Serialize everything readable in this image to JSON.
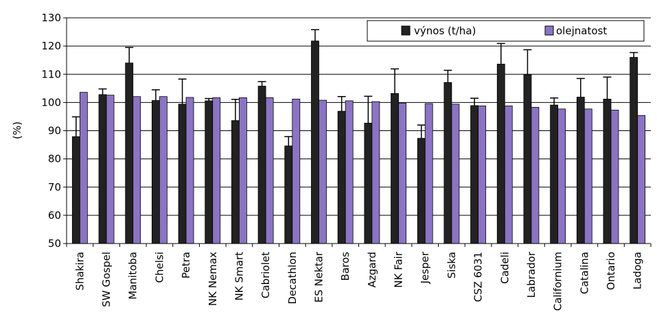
{
  "chart_data": {
    "type": "bar",
    "title": "",
    "xlabel": "",
    "ylabel": "(%)",
    "ylim": [
      50,
      130
    ],
    "yticks": [
      50,
      60,
      70,
      80,
      90,
      100,
      110,
      120,
      130
    ],
    "grid": true,
    "legend_position": "top-right",
    "categories": [
      "Shakira",
      "SW Gospel",
      "Manitoba",
      "Chelsi",
      "Petra",
      "NK Nemax",
      "NK Smart",
      "Cabriolet",
      "Decathlon",
      "ES Nektar",
      "Baros",
      "Azgard",
      "NK Fair",
      "Jesper",
      "Siska",
      "CSZ 6031",
      "Cadeli",
      "Labrador",
      "Californium",
      "Catalina",
      "Ontario",
      "Ladoga"
    ],
    "series": [
      {
        "name": "výnos (t/ha)",
        "color": "#222222",
        "values": [
          87.9,
          102.8,
          114,
          100.7,
          99.4,
          100.6,
          93.6,
          105.8,
          84.6,
          121.8,
          96.9,
          92.7,
          103.2,
          87.3,
          107.1,
          98.9,
          113.6,
          109.9,
          99.1,
          101.9,
          101.2,
          116.0
        ],
        "errors": [
          7.0,
          2.0,
          5.5,
          3.8,
          8.9,
          0.8,
          7.5,
          1.6,
          3.3,
          4.0,
          5.2,
          9.5,
          8.7,
          4.7,
          4.3,
          2.6,
          7.3,
          8.8,
          2.5,
          6.6,
          7.8,
          1.7
        ]
      },
      {
        "name": "olejnatost",
        "color": "#8b74c2",
        "values": [
          103.6,
          102.6,
          102.1,
          102.1,
          101.8,
          101.7,
          101.7,
          101.7,
          101.2,
          100.8,
          100.6,
          100.3,
          99.8,
          99.6,
          99.4,
          98.8,
          98.8,
          98.3,
          97.7,
          97.7,
          97.3,
          95.4
        ]
      }
    ]
  }
}
